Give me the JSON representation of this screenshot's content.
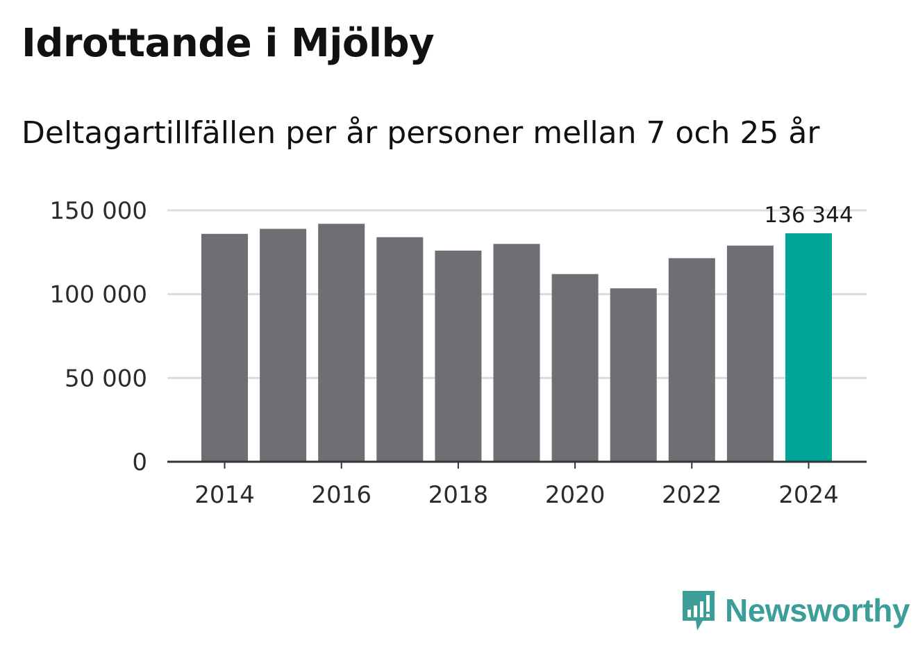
{
  "title": "Idrottande i Mjölby",
  "subtitle": "Deltagartillfällen per år personer mellan 7 och 25 år",
  "brand": {
    "name": "Newsworthy",
    "color": "#3c9e98"
  },
  "colors": {
    "bar": "#6f6e74",
    "highlight": "#00a59a",
    "grid": "#dcdcdc",
    "axis": "#333333"
  },
  "chart_data": {
    "type": "bar",
    "title": "Idrottande i Mjölby",
    "subtitle": "Deltagartillfällen per år personer mellan 7 och 25 år",
    "xlabel": "",
    "ylabel": "",
    "categories": [
      "2014",
      "2015",
      "2016",
      "2017",
      "2018",
      "2019",
      "2020",
      "2021",
      "2022",
      "2023",
      "2024"
    ],
    "values": [
      136000,
      139000,
      142000,
      134000,
      126000,
      130000,
      112000,
      103500,
      121500,
      129000,
      136344
    ],
    "ylim": [
      0,
      150000
    ],
    "yticks": [
      0,
      50000,
      100000,
      150000
    ],
    "ytick_labels": [
      "0",
      "50 000",
      "100 000",
      "150 000"
    ],
    "xtick_labels": [
      "2014",
      "2016",
      "2018",
      "2020",
      "2022",
      "2024"
    ],
    "highlight_index": 10,
    "data_label": "136 344",
    "grid": true
  }
}
